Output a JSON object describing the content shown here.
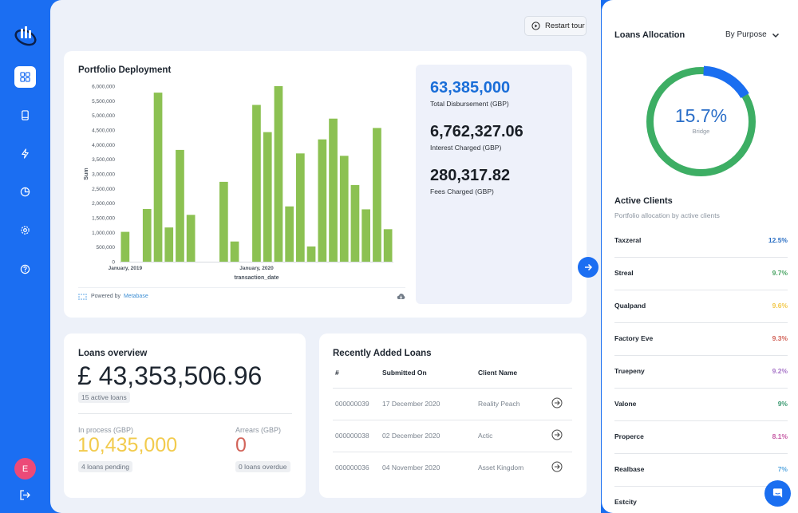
{
  "header": {
    "restart_label": "Restart tour"
  },
  "portfolio": {
    "title": "Portfolio Deployment",
    "powered_prefix": "Powered by",
    "powered_brand": "Metabase",
    "stats": [
      {
        "value": "63,385,000",
        "label": "Total Disbursement (GBP)"
      },
      {
        "value": "6,762,327.06",
        "label": "Interest Charged (GBP)"
      },
      {
        "value": "280,317.82",
        "label": "Fees Charged (GBP)"
      }
    ]
  },
  "chart_data": {
    "type": "bar",
    "xlabel": "transaction_date",
    "ylabel": "Sum",
    "ylim": [
      0,
      6000000
    ],
    "yticks": [
      "0",
      "500,000",
      "1,000,000",
      "1,500,000",
      "2,000,000",
      "2,500,000",
      "3,000,000",
      "3,500,000",
      "4,000,000",
      "4,500,000",
      "5,000,000",
      "5,500,000",
      "6,000,000"
    ],
    "x_tick_labels": [
      {
        "label": "January, 2019",
        "index": 0
      },
      {
        "label": "January, 2020",
        "index": 12
      }
    ],
    "color": "#8cc152",
    "grid": false,
    "values": [
      1020000,
      0,
      1800000,
      5780000,
      1170000,
      3820000,
      1600000,
      0,
      0,
      2730000,
      690000,
      0,
      5360000,
      4430000,
      6000000,
      1890000,
      3700000,
      520000,
      4180000,
      4890000,
      3620000,
      2620000,
      1790000,
      4570000,
      1110000
    ]
  },
  "loans_overview": {
    "title": "Loans overview",
    "amount": "£ 43,353,506.96",
    "active_loans": "15 active loans",
    "in_process_label": "In process (GBP)",
    "in_process_value": "10,435,000",
    "pending": "4 loans pending",
    "arrears_label": "Arrears (GBP)",
    "arrears_value": "0",
    "overdue": "0 loans overdue"
  },
  "recent": {
    "title": "Recently Added Loans",
    "columns": [
      "#",
      "Submitted On",
      "Client Name"
    ],
    "rows": [
      {
        "id": "000000039",
        "date": "17 December 2020",
        "client": "Reality Peach"
      },
      {
        "id": "000000038",
        "date": "02 December 2020",
        "client": "Actic"
      },
      {
        "id": "000000036",
        "date": "04 November 2020",
        "client": "Asset Kingdom"
      }
    ]
  },
  "allocation": {
    "title": "Loans Allocation",
    "select": "By Purpose",
    "percent": "15.7%",
    "percent_value": 15.7,
    "category": "Bridge",
    "ring_color": "#3dae64",
    "highlight_color": "#1a6ef0"
  },
  "active_clients": {
    "title": "Active Clients",
    "subtitle": "Portfolio allocation by active clients",
    "clients": [
      {
        "name": "Taxzeral",
        "pct": "12.5%",
        "color": "#2b6fc4"
      },
      {
        "name": "Streal",
        "pct": "9.7%",
        "color": "#4ba464"
      },
      {
        "name": "Qualpand",
        "pct": "9.6%",
        "color": "#f2c94c"
      },
      {
        "name": "Factory Eve",
        "pct": "9.3%",
        "color": "#d2645a"
      },
      {
        "name": "Truepeny",
        "pct": "9.2%",
        "color": "#a877c9"
      },
      {
        "name": "Valone",
        "pct": "9%",
        "color": "#3c9a72"
      },
      {
        "name": "Properce",
        "pct": "8.1%",
        "color": "#c65aa4"
      },
      {
        "name": "Realbase",
        "pct": "7%",
        "color": "#5aa8e0"
      },
      {
        "name": "Estcity",
        "pct": "",
        "color": "#1e2630"
      }
    ]
  }
}
